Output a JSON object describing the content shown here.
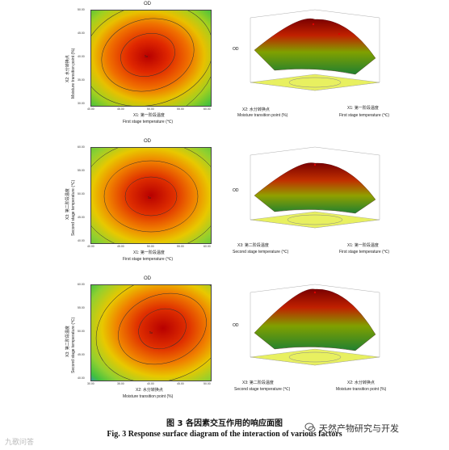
{
  "figure": {
    "caption_cn": "图 3   各因素交互作用的响应面图",
    "caption_en": "Fig. 3    Response surface diagram of the interaction of various factors",
    "watermark_left": "九歌问答",
    "watermark_right": "天然产物研究与开发"
  },
  "rows": [
    {
      "contour": {
        "title": "OD",
        "xlabel_cn": "X1: 第一阶段温度",
        "xlabel_en": "First stage temperature (℃)",
        "ylabel_cn": "X2: 水分转换点",
        "ylabel_en": "Moisture transition point (%)",
        "x_ticks": [
          "40.00",
          "45.00",
          "50.00",
          "55.00",
          "60.00"
        ],
        "y_ticks": [
          "30.00",
          "35.00",
          "40.00",
          "45.00",
          "50.00"
        ],
        "center_label": "5a"
      },
      "surface": {
        "zlabel": "OD",
        "axis_left_cn": "X2: 水分转换点",
        "axis_left_en": "Moisture transition point (%)",
        "axis_right_cn": "X1: 第一阶段温度",
        "axis_right_en": "First stage temperature (℃)"
      }
    },
    {
      "contour": {
        "title": "OD",
        "xlabel_cn": "X1: 第一阶段温度",
        "xlabel_en": "First stage temperature (℃)",
        "ylabel_cn": "X3: 第二阶段温度",
        "ylabel_en": "Second stage temperature (℃)",
        "x_ticks": [
          "40.00",
          "45.00",
          "50.00",
          "55.00",
          "60.00"
        ],
        "y_ticks": [
          "40.00",
          "45.00",
          "50.00",
          "55.00",
          "60.00"
        ],
        "center_label": "5a"
      },
      "surface": {
        "zlabel": "OD",
        "axis_left_cn": "X3: 第二阶段温度",
        "axis_left_en": "Second stage temperature (℃)",
        "axis_right_cn": "X1: 第一阶段温度",
        "axis_right_en": "First stage temperature (℃)"
      }
    },
    {
      "contour": {
        "title": "OD",
        "xlabel_cn": "X2: 水分转换点",
        "xlabel_en": "Moisture transition point (%)",
        "ylabel_cn": "X3: 第二阶段温度",
        "ylabel_en": "Second stage temperature (℃)",
        "x_ticks": [
          "30.00",
          "35.00",
          "40.00",
          "45.00",
          "50.00"
        ],
        "y_ticks": [
          "40.00",
          "45.00",
          "50.00",
          "55.00",
          "60.00"
        ],
        "center_label": "5a"
      },
      "surface": {
        "zlabel": "OD",
        "axis_left_cn": "X3: 第二阶段温度",
        "axis_left_en": "Second stage temperature (℃)",
        "axis_right_cn": "X2: 水分转换点",
        "axis_right_en": "Moisture transition point (%)"
      }
    }
  ]
}
